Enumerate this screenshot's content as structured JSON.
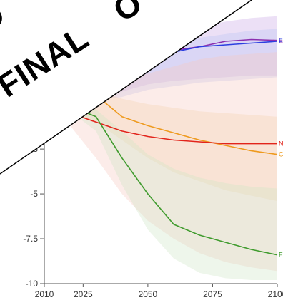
{
  "overlay": {
    "text": "FINAL",
    "fragment_left": "O",
    "fragment_right": "O"
  },
  "chart_data": {
    "type": "line",
    "title": "",
    "xlabel": "",
    "ylabel": "",
    "xlim": [
      2010,
      2100
    ],
    "ylim": [
      -10,
      3.5
    ],
    "x_ticks": [
      2010,
      2025,
      2050,
      2075,
      2100
    ],
    "x_tick_labels": [
      "2010",
      "2025",
      "2050",
      "2075",
      "2100"
    ],
    "y_ticks": [
      -2.5,
      -5,
      -7.5,
      -10
    ],
    "y_tick_labels": [
      "-2.5",
      "-5",
      "-7.5",
      "-10"
    ],
    "grid": false,
    "legend": "end-of-line labels",
    "series": [
      {
        "color": "#8b2fb0",
        "end_label": "E",
        "x": [
          2010,
          2020,
          2030,
          2040,
          2050,
          2060,
          2070,
          2080,
          2090,
          2100
        ],
        "y": [
          0,
          0.3,
          0.8,
          2.0,
          2.6,
          3.0,
          3.2,
          3.5,
          3.6,
          3.55
        ],
        "band_upper": [
          0,
          0.4,
          1.2,
          2.5,
          3.3,
          3.9,
          4.3,
          4.6,
          4.8,
          4.9
        ],
        "band_lower": [
          0,
          -0.1,
          0.2,
          0.7,
          1.1,
          1.3,
          1.4,
          1.5,
          1.6,
          1.6
        ],
        "band_color": "#c9a6e6"
      },
      {
        "color": "#2c3fe0",
        "end_label": "F",
        "x": [
          2010,
          2020,
          2030,
          2040,
          2050,
          2060,
          2070,
          2080,
          2090,
          2100
        ],
        "y": [
          0,
          0.3,
          0.6,
          1.2,
          2.3,
          2.9,
          3.2,
          3.3,
          3.4,
          3.5
        ],
        "band_upper": [
          0,
          0.35,
          0.9,
          1.9,
          2.9,
          3.4,
          3.7,
          3.9,
          4.1,
          4.2
        ],
        "band_lower": [
          0,
          0.1,
          0.2,
          0.4,
          0.8,
          1.0,
          1.2,
          1.3,
          1.4,
          1.5
        ],
        "band_color": "#b9c4f4"
      },
      {
        "color": "#ee9a1e",
        "end_label": "C",
        "x": [
          2010,
          2020,
          2030,
          2040,
          2050,
          2060,
          2070,
          2080,
          2090,
          2100
        ],
        "y": [
          0,
          0.3,
          0.5,
          -0.7,
          -1.2,
          -1.6,
          -2.0,
          -2.3,
          -2.6,
          -2.8
        ],
        "band_upper": [
          0,
          0.5,
          0.8,
          0.3,
          0.0,
          -0.2,
          -0.4,
          -0.5,
          -0.6,
          -0.7
        ],
        "band_lower": [
          0,
          -0.5,
          -1.0,
          -2.0,
          -3.0,
          -3.8,
          -4.3,
          -4.8,
          -5.1,
          -5.4
        ],
        "band_color": "#f4d6a8"
      },
      {
        "color": "#e2241b",
        "end_label": "N",
        "x": [
          2010,
          2020,
          2030,
          2040,
          2050,
          2060,
          2070,
          2080,
          2090,
          2100
        ],
        "y": [
          0,
          -0.5,
          -1.0,
          -1.5,
          -1.8,
          -2.0,
          -2.1,
          -2.2,
          -2.2,
          -2.2
        ],
        "band_upper": [
          0,
          0.3,
          0.8,
          1.3,
          1.7,
          2.1,
          2.5,
          2.7,
          2.8,
          2.9
        ],
        "band_lower": [
          0,
          -1.2,
          -3.0,
          -5.0,
          -6.5,
          -7.5,
          -8.3,
          -8.8,
          -9.1,
          -9.3
        ],
        "band_color": "#f6c8c0"
      },
      {
        "color": "#3f9b2d",
        "end_label": "F",
        "x": [
          2010,
          2020,
          2030,
          2040,
          2050,
          2060,
          2070,
          2080,
          2090,
          2100
        ],
        "y": [
          0,
          -0.1,
          -0.7,
          -3.0,
          -5.0,
          -6.7,
          -7.3,
          -7.7,
          -8.1,
          -8.4
        ],
        "band_upper": [
          0,
          0.2,
          -0.3,
          -1.5,
          -2.8,
          -3.6,
          -4.1,
          -4.4,
          -4.6,
          -4.7
        ],
        "band_lower": [
          0,
          -0.4,
          -1.5,
          -4.5,
          -7.0,
          -8.6,
          -9.4,
          -9.7,
          -9.8,
          -9.8
        ],
        "band_color": "#cfe6c7"
      }
    ]
  }
}
